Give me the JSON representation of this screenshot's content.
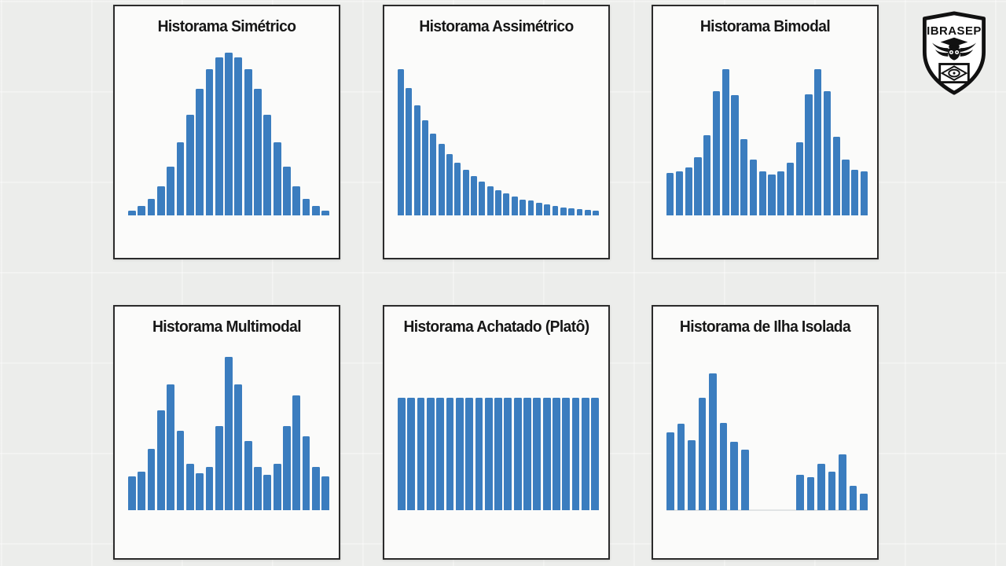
{
  "page": {
    "background_color": "#ecedeb",
    "panel_background": "#fbfbfa",
    "panel_border_color": "#2b2b2b",
    "bar_color": "#3b7dbf",
    "title_color": "#171717"
  },
  "logo": {
    "text": "IBRASEP"
  },
  "chart_data": [
    {
      "type": "bar",
      "title": "Historama Simétrico",
      "shape": "symmetric-bell",
      "values": [
        0.03,
        0.06,
        0.1,
        0.18,
        0.3,
        0.45,
        0.62,
        0.78,
        0.9,
        0.97,
        1.0,
        0.97,
        0.9,
        0.78,
        0.62,
        0.45,
        0.3,
        0.18,
        0.1,
        0.06,
        0.03
      ],
      "ylim": [
        0,
        1
      ],
      "xlabel": "",
      "ylabel": "",
      "grid": false,
      "legend": "none",
      "bar_color": "#3b7dbf"
    },
    {
      "type": "bar",
      "title": "Historama Assimétrico",
      "shape": "right-skewed-exponential-decay",
      "values": [
        1.0,
        0.87,
        0.75,
        0.65,
        0.56,
        0.49,
        0.42,
        0.36,
        0.31,
        0.27,
        0.23,
        0.2,
        0.17,
        0.15,
        0.13,
        0.11,
        0.1,
        0.085,
        0.073,
        0.063,
        0.055,
        0.047,
        0.041,
        0.036,
        0.031
      ],
      "ylim": [
        0,
        1
      ],
      "xlabel": "",
      "ylabel": "",
      "grid": false,
      "legend": "none",
      "bar_color": "#3b7dbf"
    },
    {
      "type": "bar",
      "title": "Historama Bimodal",
      "shape": "two-peaks",
      "values": [
        0.29,
        0.3,
        0.33,
        0.4,
        0.55,
        0.85,
        1.0,
        0.82,
        0.52,
        0.38,
        0.3,
        0.28,
        0.3,
        0.36,
        0.5,
        0.83,
        1.0,
        0.85,
        0.54,
        0.38,
        0.31,
        0.3
      ],
      "ylim": [
        0,
        1
      ],
      "xlabel": "",
      "ylabel": "",
      "grid": false,
      "legend": "none",
      "bar_color": "#3b7dbf"
    },
    {
      "type": "bar",
      "title": "Historama Multimodal",
      "shape": "three-peaks",
      "values": [
        0.22,
        0.25,
        0.4,
        0.65,
        0.82,
        0.52,
        0.3,
        0.24,
        0.28,
        0.55,
        1.0,
        0.82,
        0.45,
        0.28,
        0.23,
        0.3,
        0.55,
        0.75,
        0.48,
        0.28,
        0.22
      ],
      "ylim": [
        0,
        1
      ],
      "xlabel": "",
      "ylabel": "",
      "grid": false,
      "legend": "none",
      "bar_color": "#3b7dbf"
    },
    {
      "type": "bar",
      "title": "Historama Achatado (Platô)",
      "shape": "uniform-plateau",
      "values": [
        1,
        1,
        1,
        1,
        1,
        1,
        1,
        1,
        1,
        1,
        1,
        1,
        1,
        1,
        1,
        1,
        1,
        1,
        1,
        1,
        1
      ],
      "ylim": [
        0,
        1
      ],
      "xlabel": "",
      "ylabel": "",
      "grid": false,
      "legend": "none",
      "bar_color": "#3b7dbf"
    },
    {
      "type": "bar",
      "title": "Historama de Ilha Isolada",
      "shape": "main-group-plus-isolated-island",
      "series": [
        {
          "name": "grupo-principal",
          "values": [
            0.57,
            0.63,
            0.51,
            0.82,
            1.0,
            0.64,
            0.5,
            0.44
          ]
        },
        {
          "name": "ilha-isolada",
          "values": [
            0.26,
            0.24,
            0.34,
            0.28,
            0.41,
            0.18,
            0.12
          ]
        }
      ],
      "gap_units": 5.5,
      "baseline": true,
      "ylim": [
        0,
        1
      ],
      "xlabel": "",
      "ylabel": "",
      "grid": false,
      "legend": "none",
      "bar_color": "#3b7dbf"
    }
  ]
}
